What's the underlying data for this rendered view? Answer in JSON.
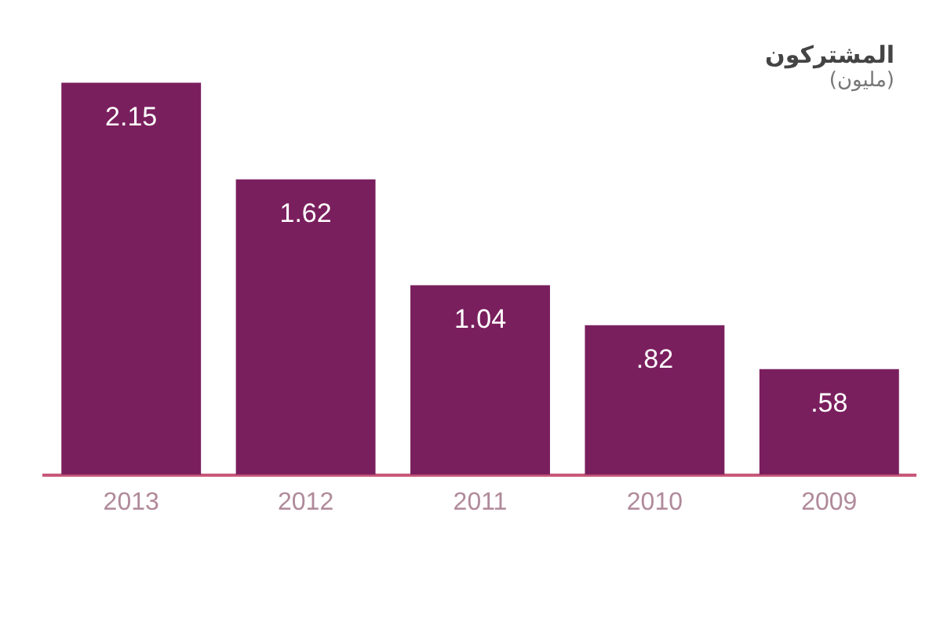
{
  "chart_data": {
    "type": "bar",
    "title": "المشتركون",
    "subtitle": "(مليون)",
    "categories": [
      "2013",
      "2012",
      "2011",
      "2010",
      "2009"
    ],
    "values": [
      2.15,
      1.62,
      1.04,
      0.82,
      0.58
    ],
    "value_labels": [
      "2.15",
      "1.62",
      "1.04",
      ".82",
      ".58"
    ],
    "color": "#7a1f5e",
    "grid": false,
    "legend": false
  }
}
